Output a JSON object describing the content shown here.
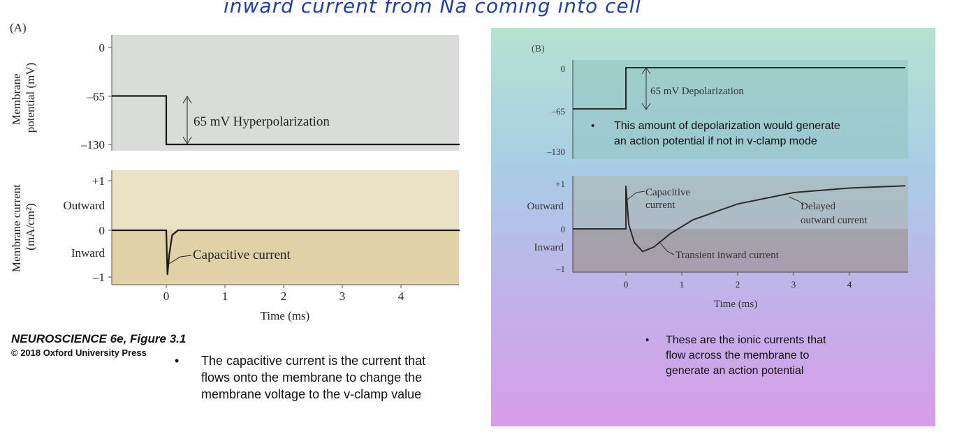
{
  "annotation": "inward current from Na coming into cell",
  "figure_a": {
    "panel_label": "(A)",
    "caption_title": "NEUROSCIENCE 6e, Figure 3.1",
    "caption_copyright": "© 2018 Oxford University Press",
    "note_bullet": "•",
    "note_text": "The capacitive current is the current that flows onto the membrane to change the membrane voltage to the v-clamp value",
    "colors": {
      "voltage_bg": "#d9dcd8",
      "current_bg_upper": "#ebe2c6",
      "current_bg_lower": "#e0d1a6",
      "trace": "#1a1a1a"
    }
  },
  "figure_b": {
    "panel_label": "(B)",
    "bullet_1": "•",
    "note_1": "This amount of depolarization would generate an action potential if not in v-clamp mode",
    "bullet_2": "•",
    "note_2": "These are the ionic currents that flow across the membrane to generate an action potential"
  },
  "chart_data": [
    {
      "type": "line",
      "panel": "A-voltage",
      "ylabel": "Membrane potential (mV)",
      "ylim": [
        -130,
        0
      ],
      "yticks": [
        "0",
        "–65",
        "–130"
      ],
      "x": [
        -1,
        0,
        0,
        5
      ],
      "y": [
        -65,
        -65,
        -130,
        -130
      ],
      "annotation": "65 mV Hyperpolarization"
    },
    {
      "type": "line",
      "panel": "A-current",
      "ylabel": "Membrane current (mA/cm²)",
      "ylim": [
        -1,
        1
      ],
      "yticks": [
        "+1",
        "0",
        "–1"
      ],
      "ylabels_side": [
        "Outward",
        "Inward"
      ],
      "xlabel": "Time (ms)",
      "xticks": [
        "0",
        "1",
        "2",
        "3",
        "4"
      ],
      "x": [
        -1,
        0,
        0.02,
        0.05,
        0.1,
        0.2,
        5
      ],
      "y": [
        0,
        0,
        -0.9,
        -0.5,
        -0.1,
        0,
        0
      ],
      "annotation": "Capacitive current"
    },
    {
      "type": "line",
      "panel": "B-voltage",
      "ylim": [
        -130,
        0
      ],
      "yticks": [
        "0",
        "–65",
        "–130"
      ],
      "x": [
        -1,
        0,
        0,
        5
      ],
      "y": [
        -65,
        -65,
        0,
        0
      ],
      "annotation": "65 mV Depolarization"
    },
    {
      "type": "line",
      "panel": "B-current",
      "ylim": [
        -1,
        1
      ],
      "yticks": [
        "+1",
        "0",
        "–1"
      ],
      "ylabels_side": [
        "Outward",
        "Inward"
      ],
      "xlabel": "Time (ms)",
      "xticks": [
        "0",
        "1",
        "2",
        "3",
        "4"
      ],
      "x": [
        -1,
        0,
        0,
        0.05,
        0.15,
        0.3,
        0.5,
        0.8,
        1.2,
        2,
        3,
        4,
        5
      ],
      "y": [
        0,
        0,
        0.95,
        0.1,
        -0.3,
        -0.5,
        -0.4,
        -0.1,
        0.2,
        0.55,
        0.8,
        0.9,
        0.95
      ],
      "annotations": [
        "Capacitive current",
        "Delayed outward current",
        "Transient inward current"
      ]
    }
  ]
}
